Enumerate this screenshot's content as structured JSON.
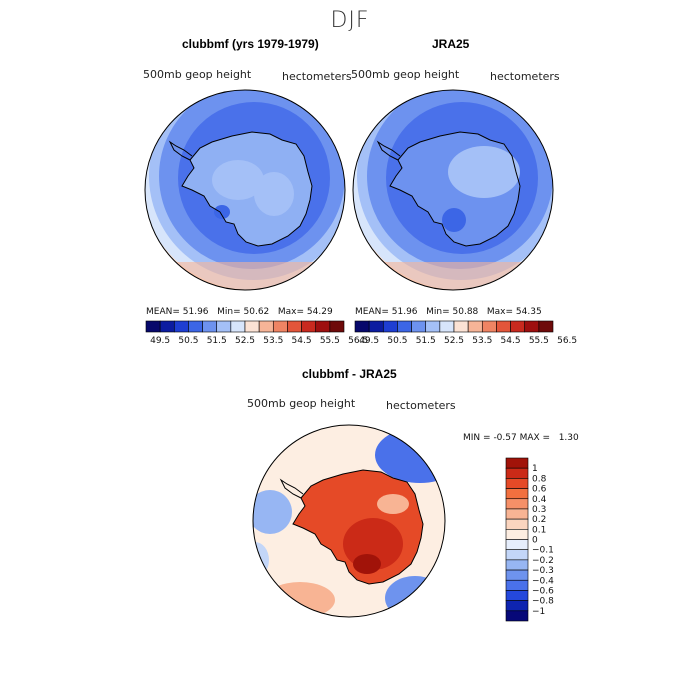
{
  "figure": {
    "season": "DJF",
    "panels": [
      {
        "title": "clubbmf (yrs 1979-1979)",
        "variable": "500mb geop height",
        "units": "hectometers",
        "stats": {
          "mean_label": "MEAN=",
          "mean": "51.96",
          "min_label": "Min=",
          "min": "50.62",
          "max_label": "Max=",
          "max": "54.29"
        }
      },
      {
        "title": "JRA25",
        "variable": "500mb geop height",
        "units": "hectometers",
        "stats": {
          "mean_label": "MEAN=",
          "mean": "51.96",
          "min_label": "Min=",
          "min": "50.88",
          "max_label": "Max=",
          "max": "54.35"
        }
      },
      {
        "title": "clubbmf - JRA25",
        "variable": "500mb geop height",
        "units": "hectometers",
        "stats": {
          "min_label": "MIN =",
          "min": "-0.57",
          "max_label": "MAX =",
          "max": "1.30"
        }
      }
    ]
  },
  "colorbar_top": {
    "labels": [
      "49.5",
      "50.5",
      "51.5",
      "52.5",
      "53.5",
      "54.5",
      "55.5",
      "56.5"
    ],
    "colors": [
      "#07086b",
      "#0c1ca0",
      "#1e3ed2",
      "#3c66e6",
      "#6d92ef",
      "#a4c0f7",
      "#d7e5fb",
      "#fbe2d4",
      "#f6b497",
      "#ef8463",
      "#e3553a",
      "#c92a1f",
      "#9e0f0f",
      "#6e0a0a"
    ]
  },
  "colorbar_diff": {
    "labels": [
      "1",
      "0.8",
      "0.6",
      "0.4",
      "0.3",
      "0.2",
      "0.1",
      "0",
      "-0.1",
      "-0.2",
      "-0.3",
      "-0.4",
      "-0.6",
      "-0.8",
      "-1"
    ],
    "colors": [
      "#a11309",
      "#cb2a17",
      "#e54a27",
      "#f2703f",
      "#f69068",
      "#f8b494",
      "#fbd5bf",
      "#fdeee2",
      "#e6eefc",
      "#c3d6f8",
      "#97b6f3",
      "#6e93ee",
      "#4a71ea",
      "#2448dc",
      "#0e24b0",
      "#060878"
    ]
  },
  "chart_data": [
    {
      "type": "heatmap",
      "title": "clubbmf (yrs 1979-1979)",
      "projection": "south polar stereographic",
      "variable": "500mb geop height",
      "units": "hectometers",
      "mean": 51.96,
      "min": 50.62,
      "max": 54.29,
      "levels": [
        49.5,
        50.5,
        51.5,
        52.5,
        53.5,
        54.5,
        55.5,
        56.5
      ]
    },
    {
      "type": "heatmap",
      "title": "JRA25",
      "projection": "south polar stereographic",
      "variable": "500mb geop height",
      "units": "hectometers",
      "mean": 51.96,
      "min": 50.88,
      "max": 54.35,
      "levels": [
        49.5,
        50.5,
        51.5,
        52.5,
        53.5,
        54.5,
        55.5,
        56.5
      ]
    },
    {
      "type": "heatmap",
      "title": "clubbmf - JRA25",
      "projection": "south polar stereographic",
      "variable": "500mb geop height",
      "units": "hectometers",
      "min": -0.57,
      "max": 1.3,
      "levels": [
        -1,
        -0.8,
        -0.6,
        -0.4,
        -0.3,
        -0.2,
        -0.1,
        0,
        0.1,
        0.2,
        0.3,
        0.4,
        0.6,
        0.8,
        1
      ]
    }
  ]
}
